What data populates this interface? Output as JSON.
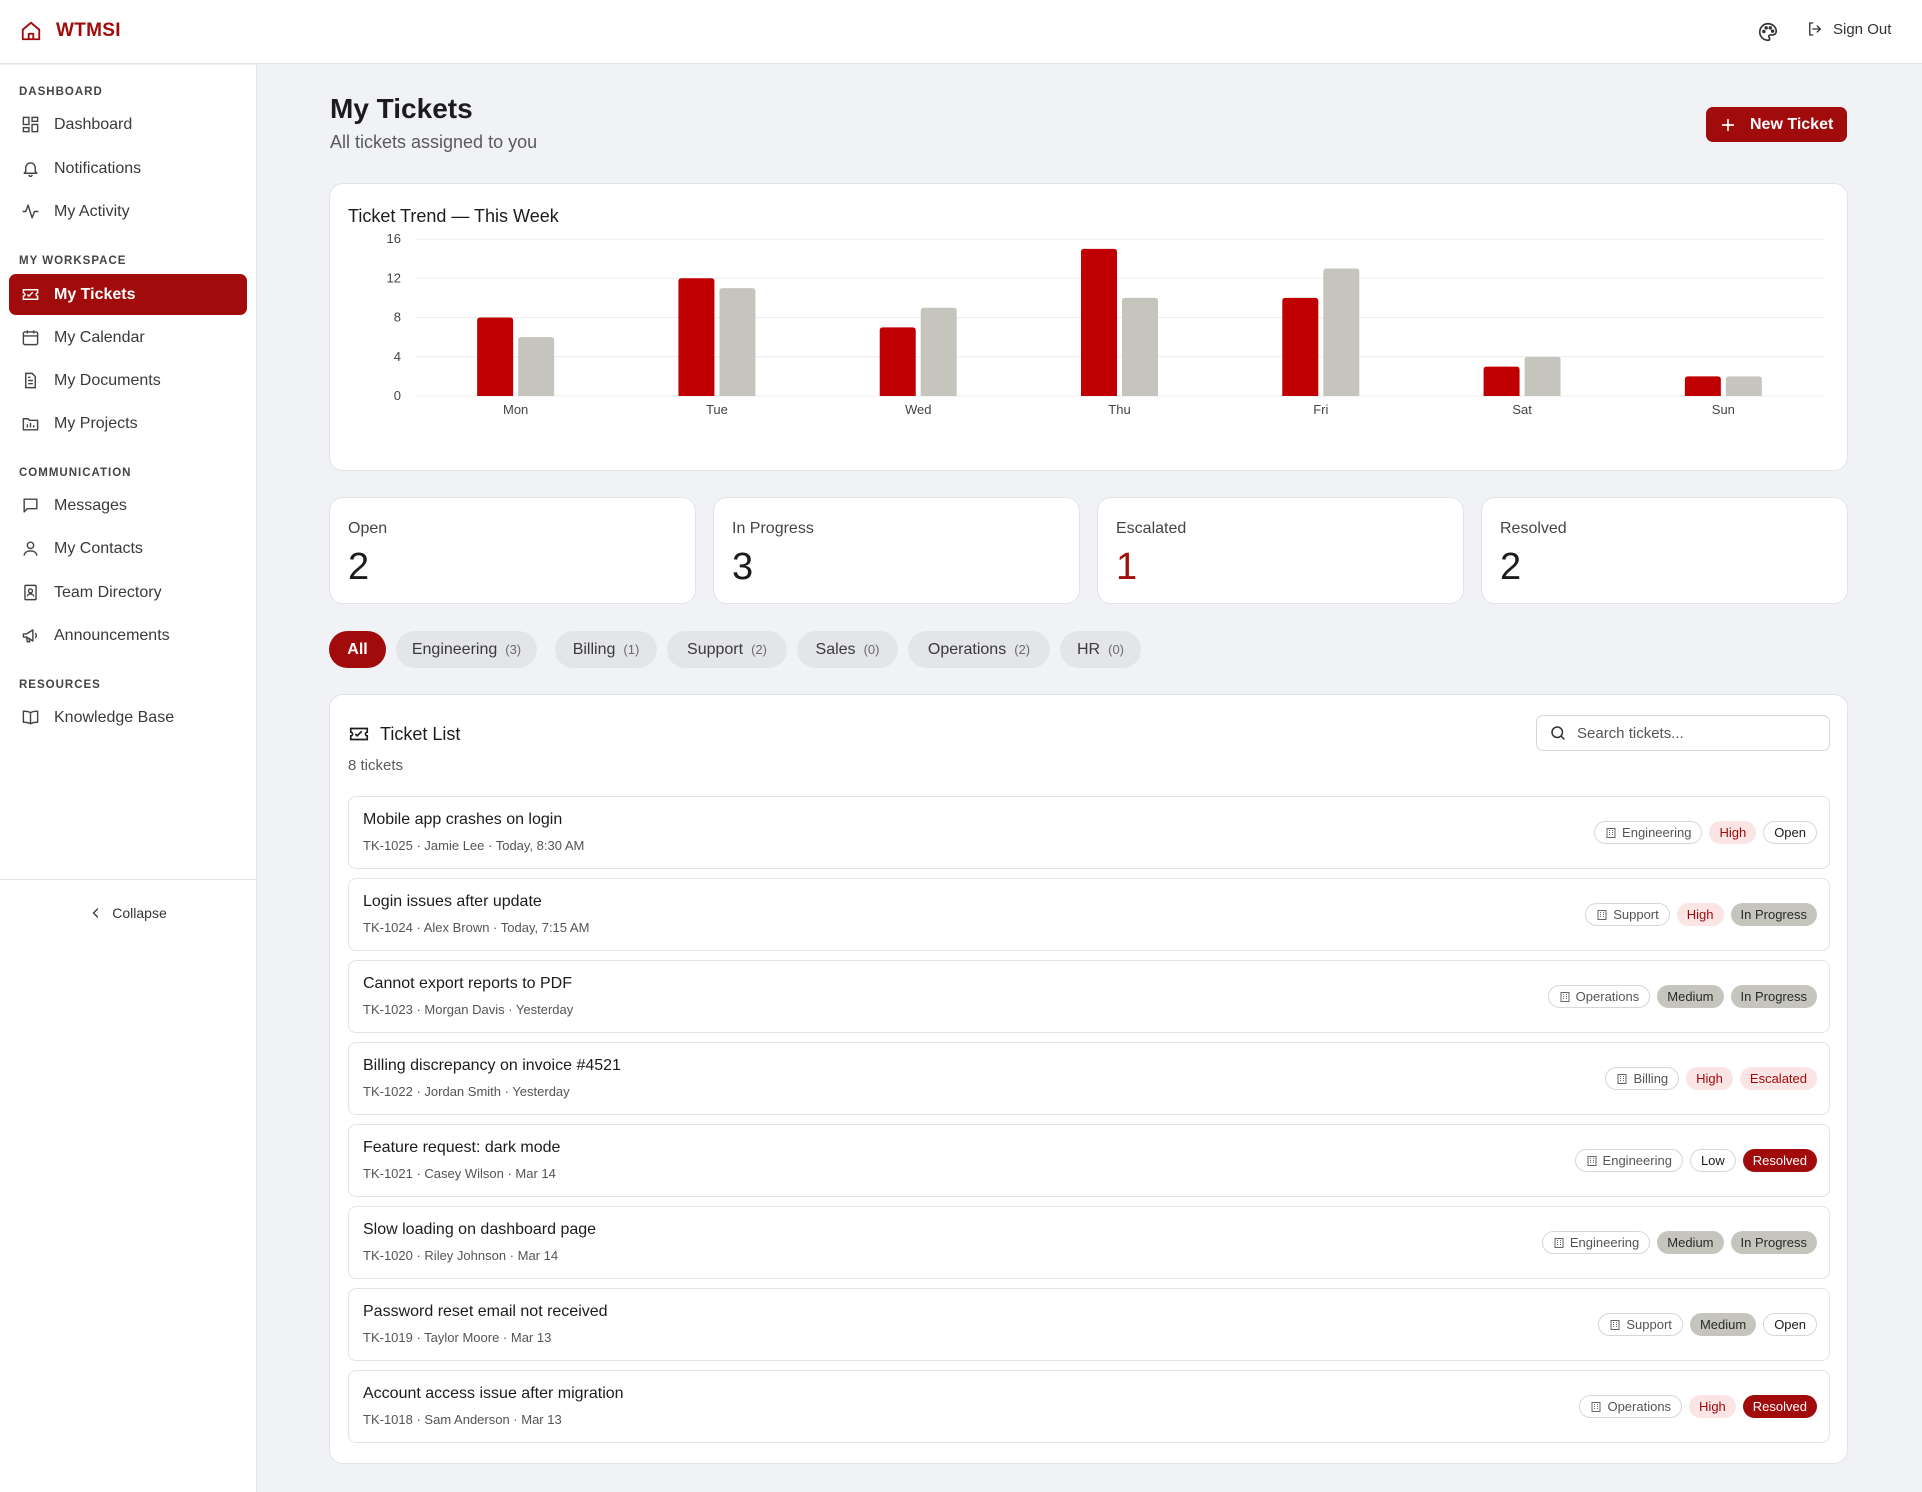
{
  "app": {
    "brand": "WTMSI",
    "sign_out": "Sign Out"
  },
  "sidebar": {
    "sections": [
      {
        "title": "DASHBOARD",
        "items": [
          {
            "label": "Dashboard",
            "icon": "dashboard-icon"
          },
          {
            "label": "Notifications",
            "icon": "bell-icon"
          },
          {
            "label": "My Activity",
            "icon": "activity-icon"
          }
        ]
      },
      {
        "title": "MY WORKSPACE",
        "items": [
          {
            "label": "My Tickets",
            "icon": "ticket-icon",
            "active": true
          },
          {
            "label": "My Calendar",
            "icon": "calendar-icon"
          },
          {
            "label": "My Documents",
            "icon": "document-icon"
          },
          {
            "label": "My Projects",
            "icon": "folder-icon"
          }
        ]
      },
      {
        "title": "COMMUNICATION",
        "items": [
          {
            "label": "Messages",
            "icon": "message-icon"
          },
          {
            "label": "My Contacts",
            "icon": "user-icon"
          },
          {
            "label": "Team Directory",
            "icon": "contact-book-icon"
          },
          {
            "label": "Announcements",
            "icon": "megaphone-icon"
          }
        ]
      },
      {
        "title": "RESOURCES",
        "items": [
          {
            "label": "Knowledge Base",
            "icon": "book-icon"
          }
        ]
      }
    ],
    "collapse": "Collapse"
  },
  "header": {
    "title": "My Tickets",
    "subtitle": "All tickets assigned to you",
    "new_ticket": "New Ticket"
  },
  "chart_title": "Ticket Trend — This Week",
  "chart_data": {
    "type": "bar",
    "title": "Ticket Trend — This Week",
    "categories": [
      "Mon",
      "Tue",
      "Wed",
      "Thu",
      "Fri",
      "Sat",
      "Sun"
    ],
    "series": [
      {
        "values": [
          8,
          12,
          7,
          15,
          10,
          3,
          2
        ],
        "color": "#c00000"
      },
      {
        "values": [
          6,
          11,
          9,
          10,
          13,
          4,
          2
        ],
        "color": "#c5c5bd"
      }
    ],
    "yticks": [
      0,
      4,
      8,
      12,
      16
    ],
    "ylim": [
      0,
      16
    ],
    "grid": true,
    "legend": "none"
  },
  "stats": [
    {
      "label": "Open",
      "value": "2"
    },
    {
      "label": "In Progress",
      "value": "3"
    },
    {
      "label": "Escalated",
      "value": "1"
    },
    {
      "label": "Resolved",
      "value": "2"
    }
  ],
  "filters": [
    {
      "label": "All",
      "count": "",
      "active": true
    },
    {
      "label": "Engineering",
      "count": "(3)"
    },
    {
      "label": "Billing",
      "count": "(1)"
    },
    {
      "label": "Support",
      "count": "(2)"
    },
    {
      "label": "Sales",
      "count": "(0)"
    },
    {
      "label": "Operations",
      "count": "(2)"
    },
    {
      "label": "HR",
      "count": "(0)"
    }
  ],
  "ticket_list": {
    "title": "Ticket List",
    "count": "8 tickets",
    "search_placeholder": "Search tickets...",
    "tickets": [
      {
        "title": "Mobile app crashes on login",
        "meta": "TK-1025 · Jamie Lee · Today, 8:30 AM",
        "dept": "Engineering",
        "priority": "High",
        "status": "Open"
      },
      {
        "title": "Login issues after update",
        "meta": "TK-1024 · Alex Brown · Today, 7:15 AM",
        "dept": "Support",
        "priority": "High",
        "status": "In Progress"
      },
      {
        "title": "Cannot export reports to PDF",
        "meta": "TK-1023 · Morgan Davis · Yesterday",
        "dept": "Operations",
        "priority": "Medium",
        "status": "In Progress"
      },
      {
        "title": "Billing discrepancy on invoice #4521",
        "meta": "TK-1022 · Jordan Smith · Yesterday",
        "dept": "Billing",
        "priority": "High",
        "status": "Escalated"
      },
      {
        "title": "Feature request: dark mode",
        "meta": "TK-1021 · Casey Wilson · Mar 14",
        "dept": "Engineering",
        "priority": "Low",
        "status": "Resolved"
      },
      {
        "title": "Slow loading on dashboard page",
        "meta": "TK-1020 · Riley Johnson · Mar 14",
        "dept": "Engineering",
        "priority": "Medium",
        "status": "In Progress"
      },
      {
        "title": "Password reset email not received",
        "meta": "TK-1019 · Taylor Moore · Mar 13",
        "dept": "Support",
        "priority": "Medium",
        "status": "Open"
      },
      {
        "title": "Account access issue after migration",
        "meta": "TK-1018 · Sam Anderson · Mar 13",
        "dept": "Operations",
        "priority": "High",
        "status": "Resolved"
      }
    ]
  }
}
